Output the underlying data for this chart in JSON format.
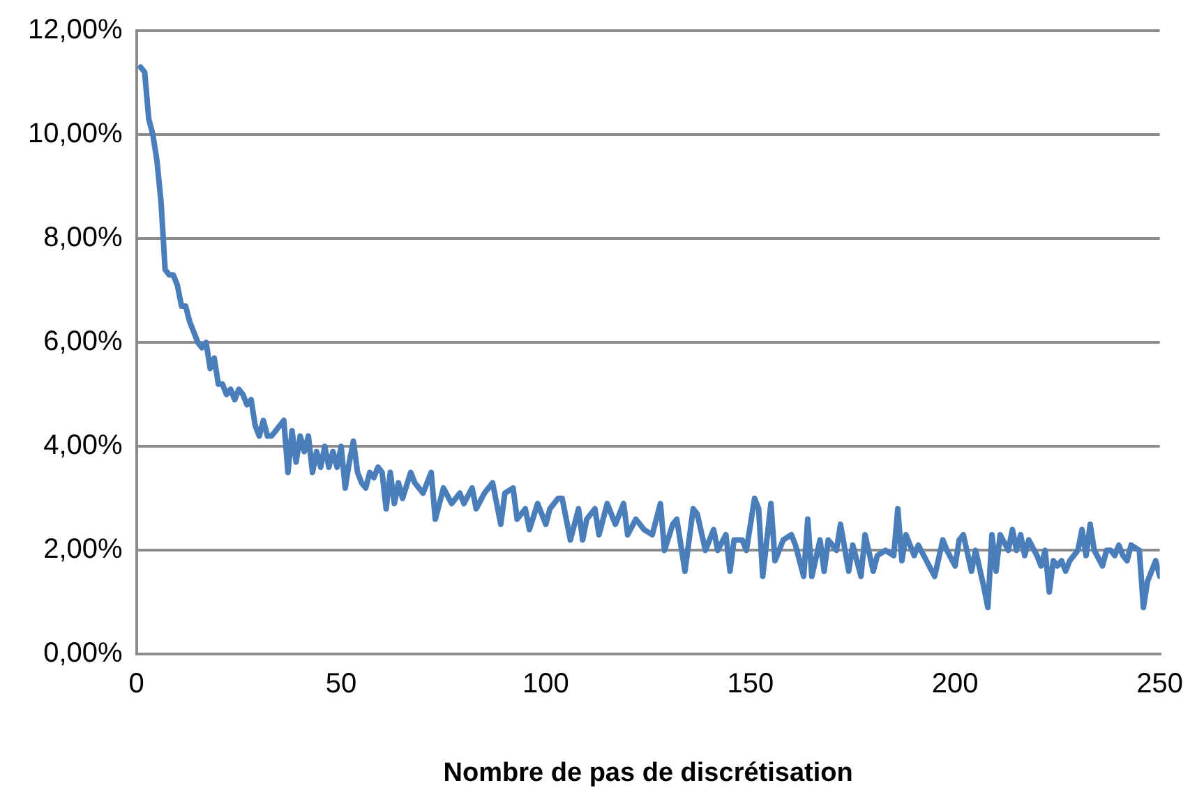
{
  "chart_data": {
    "type": "line",
    "xlabel": "Nombre de pas de discrétisation",
    "grid": "y",
    "marker": "none",
    "line_style": "solid",
    "xlim": [
      0,
      250
    ],
    "xticks": [
      0,
      50,
      100,
      150,
      200,
      250
    ],
    "ylim": [
      0,
      12
    ],
    "yticks": [
      {
        "value": 0,
        "label": "0,00%"
      },
      {
        "value": 2,
        "label": "2,00%"
      },
      {
        "value": 4,
        "label": "4,00%"
      },
      {
        "value": 6,
        "label": "6,00%"
      },
      {
        "value": 8,
        "label": "8,00%"
      },
      {
        "value": 10,
        "label": "10,00%"
      },
      {
        "value": 12,
        "label": "12,00%"
      }
    ],
    "series": [
      {
        "color": "#4a7ebb",
        "x": [
          1,
          2,
          3,
          4,
          5,
          6,
          7,
          8,
          9,
          10,
          11,
          12,
          13,
          14,
          15,
          16,
          17,
          18,
          19,
          20,
          21,
          22,
          23,
          24,
          25,
          26,
          27,
          28,
          29,
          30,
          31,
          32,
          33,
          34,
          35,
          36,
          37,
          38,
          39,
          40,
          41,
          42,
          43,
          44,
          45,
          46,
          47,
          48,
          49,
          50,
          51,
          52,
          53,
          54,
          55,
          56,
          57,
          58,
          59,
          60,
          61,
          62,
          63,
          64,
          65,
          67,
          68,
          70,
          72,
          73,
          75,
          77,
          79,
          80,
          82,
          83,
          85,
          87,
          89,
          90,
          92,
          93,
          95,
          96,
          98,
          100,
          101,
          103,
          104,
          106,
          108,
          109,
          110,
          112,
          113,
          115,
          117,
          119,
          120,
          122,
          124,
          126,
          128,
          129,
          131,
          132,
          134,
          136,
          137,
          139,
          141,
          142,
          144,
          145,
          146,
          148,
          149,
          151,
          152,
          153,
          155,
          156,
          158,
          160,
          161,
          163,
          164,
          165,
          167,
          168,
          169,
          171,
          172,
          174,
          175,
          177,
          178,
          180,
          181,
          183,
          185,
          186,
          187,
          188,
          190,
          191,
          193,
          195,
          197,
          198,
          200,
          201,
          202,
          204,
          205,
          207,
          208,
          209,
          210,
          211,
          213,
          214,
          215,
          216,
          217,
          218,
          220,
          221,
          222,
          223,
          224,
          225,
          226,
          227,
          228,
          230,
          231,
          232,
          233,
          234,
          236,
          237,
          238,
          239,
          240,
          241,
          242,
          243,
          245,
          246,
          247,
          248,
          249,
          250
        ],
        "values": [
          11.3,
          11.2,
          10.3,
          10.0,
          9.5,
          8.7,
          7.4,
          7.3,
          7.3,
          7.1,
          6.7,
          6.7,
          6.4,
          6.2,
          6.0,
          5.9,
          6.0,
          5.5,
          5.7,
          5.2,
          5.2,
          5.0,
          5.1,
          4.9,
          5.1,
          5.0,
          4.8,
          4.9,
          4.4,
          4.2,
          4.5,
          4.2,
          4.2,
          4.3,
          4.4,
          4.5,
          3.5,
          4.3,
          3.7,
          4.2,
          3.9,
          4.2,
          3.5,
          3.9,
          3.6,
          4.0,
          3.6,
          3.9,
          3.6,
          4.0,
          3.2,
          3.7,
          4.1,
          3.5,
          3.3,
          3.2,
          3.5,
          3.4,
          3.6,
          3.5,
          2.8,
          3.5,
          2.9,
          3.3,
          3.0,
          3.5,
          3.3,
          3.1,
          3.5,
          2.6,
          3.2,
          2.9,
          3.1,
          2.9,
          3.2,
          2.8,
          3.1,
          3.3,
          2.5,
          3.1,
          3.2,
          2.6,
          2.8,
          2.4,
          2.9,
          2.5,
          2.8,
          3.0,
          3.0,
          2.2,
          2.8,
          2.2,
          2.6,
          2.8,
          2.3,
          2.9,
          2.5,
          2.9,
          2.3,
          2.6,
          2.4,
          2.3,
          2.9,
          2.0,
          2.5,
          2.6,
          1.6,
          2.8,
          2.7,
          2.0,
          2.4,
          2.0,
          2.3,
          1.6,
          2.2,
          2.2,
          2.0,
          3.0,
          2.8,
          1.5,
          2.9,
          1.8,
          2.2,
          2.3,
          2.1,
          1.5,
          2.6,
          1.5,
          2.2,
          1.6,
          2.2,
          2.0,
          2.5,
          1.6,
          2.1,
          1.5,
          2.3,
          1.6,
          1.9,
          2.0,
          1.9,
          2.8,
          1.8,
          2.3,
          1.9,
          2.1,
          1.8,
          1.5,
          2.2,
          2.0,
          1.7,
          2.2,
          2.3,
          1.6,
          2.0,
          1.3,
          0.9,
          2.3,
          1.6,
          2.3,
          2.0,
          2.4,
          2.0,
          2.3,
          1.9,
          2.2,
          1.9,
          1.7,
          2.0,
          1.2,
          1.8,
          1.7,
          1.8,
          1.6,
          1.8,
          2.0,
          2.4,
          1.9,
          2.5,
          2.0,
          1.7,
          2.0,
          2.0,
          1.9,
          2.1,
          1.9,
          1.8,
          2.1,
          2.0,
          0.9,
          1.4,
          1.6,
          1.8,
          1.5
        ]
      }
    ]
  }
}
